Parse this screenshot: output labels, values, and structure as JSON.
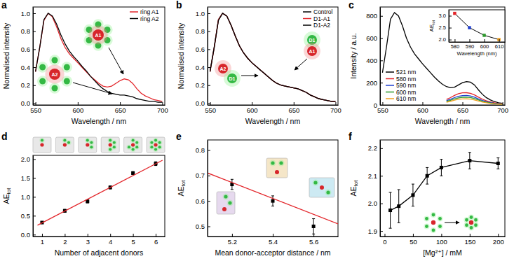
{
  "chart_data": [
    {
      "type": "line",
      "title": "a",
      "xlabel": "Wavelength / nm",
      "ylabel": "Normalised intensity",
      "xlim": [
        547,
        703
      ],
      "xticks": [
        550,
        600,
        650,
        700
      ],
      "ylim": [
        -0.02,
        1.07
      ],
      "yticks": [
        {
          "value": 0,
          "label": "0.0"
        },
        0.2,
        0.4,
        0.6,
        0.8,
        {
          "value": 1,
          "label": "1.0"
        }
      ],
      "legend": "upper right",
      "annotations": [
        "A1",
        "A2"
      ],
      "x": [
        550,
        555,
        560,
        565,
        570,
        575,
        580,
        585,
        590,
        595,
        600,
        605,
        610,
        615,
        620,
        625,
        630,
        635,
        640,
        645,
        650,
        655,
        660,
        665,
        670,
        675,
        680,
        685,
        690,
        695,
        700
      ],
      "series": [
        {
          "name": "ring A1",
          "color": "#e3262b",
          "values": [
            0.35,
            0.62,
            0.92,
            1.0,
            0.96,
            0.85,
            0.72,
            0.62,
            0.55,
            0.5,
            0.45,
            0.4,
            0.35,
            0.3,
            0.26,
            0.22,
            0.19,
            0.18,
            0.19,
            0.22,
            0.25,
            0.27,
            0.26,
            0.22,
            0.16,
            0.11,
            0.08,
            0.06,
            0.04,
            0.03,
            0.02
          ]
        },
        {
          "name": "ring A2",
          "color": "#000000",
          "values": [
            0.35,
            0.62,
            0.93,
            1.0,
            0.97,
            0.88,
            0.76,
            0.66,
            0.58,
            0.52,
            0.47,
            0.41,
            0.36,
            0.3,
            0.25,
            0.2,
            0.16,
            0.13,
            0.11,
            0.1,
            0.09,
            0.09,
            0.08,
            0.07,
            0.05,
            0.04,
            0.03,
            0.02,
            0.02,
            0.01,
            0.01
          ]
        }
      ]
    },
    {
      "type": "line",
      "title": "b",
      "xlabel": "Wavelength / nm",
      "ylabel": "Normalised intensity",
      "xlim": [
        547,
        703
      ],
      "xticks": [
        550,
        600,
        650,
        700
      ],
      "ylim": [
        -0.02,
        1.07
      ],
      "yticks": [
        {
          "value": 0,
          "label": "0.0"
        },
        0.2,
        0.4,
        0.6,
        0.8,
        {
          "value": 1,
          "label": "1.0"
        }
      ],
      "legend": "upper right",
      "annotations": [
        "D1",
        "A1",
        "A2",
        "D1"
      ],
      "x": [
        550,
        555,
        560,
        565,
        570,
        575,
        580,
        585,
        590,
        595,
        600,
        605,
        610,
        615,
        620,
        625,
        630,
        635,
        640,
        645,
        650,
        655,
        660,
        665,
        670,
        675,
        680,
        685,
        690,
        695,
        700
      ],
      "series": [
        {
          "name": "Control",
          "color": "#000000",
          "values": [
            0.36,
            0.63,
            0.93,
            1.0,
            0.97,
            0.87,
            0.75,
            0.64,
            0.56,
            0.5,
            0.45,
            0.41,
            0.37,
            0.33,
            0.29,
            0.25,
            0.22,
            0.2,
            0.19,
            0.18,
            0.17,
            0.16,
            0.14,
            0.12,
            0.09,
            0.07,
            0.05,
            0.04,
            0.03,
            0.02,
            0.02
          ]
        },
        {
          "name": "D1-A1",
          "color": "#e3262b",
          "values": [
            0.35,
            0.62,
            0.93,
            1.0,
            0.97,
            0.87,
            0.75,
            0.64,
            0.56,
            0.5,
            0.45,
            0.41,
            0.37,
            0.33,
            0.29,
            0.25,
            0.22,
            0.2,
            0.19,
            0.18,
            0.17,
            0.16,
            0.14,
            0.12,
            0.09,
            0.07,
            0.05,
            0.04,
            0.03,
            0.02,
            0.02
          ]
        },
        {
          "name": "D1-A2",
          "color": "#000000",
          "values": [
            0.35,
            0.62,
            0.92,
            1.0,
            0.97,
            0.87,
            0.75,
            0.64,
            0.56,
            0.5,
            0.45,
            0.41,
            0.37,
            0.33,
            0.29,
            0.25,
            0.22,
            0.2,
            0.19,
            0.18,
            0.17,
            0.16,
            0.14,
            0.12,
            0.09,
            0.07,
            0.05,
            0.04,
            0.03,
            0.02,
            0.02
          ]
        }
      ]
    },
    {
      "type": "line",
      "title": "c",
      "xlabel": "Wavelength / nm",
      "ylabel": "Intensity / a.u.",
      "xlim": [
        547,
        703
      ],
      "xticks": [
        550,
        600,
        650,
        700
      ],
      "ylim": [
        0,
        880
      ],
      "yticks": [
        0,
        200,
        400,
        600,
        800
      ],
      "legend": "lower left",
      "x": [
        550,
        555,
        560,
        565,
        570,
        575,
        580,
        585,
        590,
        595,
        600,
        605,
        610,
        615,
        620,
        625,
        630,
        635,
        640,
        645,
        650,
        655,
        660,
        665,
        670,
        675,
        680,
        685,
        690,
        695,
        700
      ],
      "series": [
        {
          "name": "521 nm",
          "color": "#000000",
          "values": [
            290,
            520,
            770,
            830,
            800,
            710,
            600,
            520,
            460,
            415,
            370,
            330,
            290,
            250,
            215,
            185,
            165,
            155,
            160,
            180,
            200,
            210,
            205,
            180,
            135,
            95,
            65,
            45,
            30,
            20,
            15
          ]
        },
        {
          "name": "580 nm",
          "color": "#e3262b",
          "x": [
            630,
            635,
            640,
            645,
            650,
            655,
            660,
            665,
            670,
            675,
            680,
            685,
            690,
            695,
            700
          ],
          "values": [
            50,
            66,
            86,
            101,
            109,
            110,
            105,
            90,
            70,
            52,
            37,
            28,
            20,
            14,
            11
          ]
        },
        {
          "name": "590 nm",
          "color": "#1f3fd0",
          "x": [
            630,
            635,
            640,
            645,
            650,
            655,
            660,
            665,
            670,
            675,
            680,
            685,
            690,
            695,
            700
          ],
          "values": [
            38,
            51,
            66,
            78,
            84,
            85,
            81,
            70,
            54,
            40,
            29,
            21,
            15,
            11,
            9
          ]
        },
        {
          "name": "600 nm",
          "color": "#2e9a2e",
          "x": [
            630,
            635,
            640,
            645,
            650,
            655,
            660,
            665,
            670,
            675,
            680,
            685,
            690,
            695,
            700
          ],
          "values": [
            32,
            42,
            55,
            64,
            69,
            70,
            67,
            57,
            45,
            33,
            24,
            18,
            13,
            9,
            7
          ]
        },
        {
          "name": "610 nm",
          "color": "#f0a020",
          "x": [
            630,
            635,
            640,
            645,
            650,
            655,
            660,
            665,
            670,
            675,
            680,
            685,
            690,
            695,
            700
          ],
          "values": [
            25,
            33,
            43,
            51,
            54,
            55,
            52,
            45,
            35,
            26,
            19,
            14,
            10,
            7,
            6
          ]
        }
      ],
      "inset": {
        "type": "scatter",
        "xlabel": "Wavelength (nm)",
        "ylabel": "AE",
        "ylabel_subscript": "tot",
        "xlim": [
          576,
          614
        ],
        "xticks": [
          580,
          590,
          600,
          610
        ],
        "ylim": [
          1.9,
          3.25
        ],
        "yticks": [
          {
            "value": 2,
            "label": "2.0"
          },
          2.5,
          {
            "value": 3,
            "label": "3.0"
          }
        ],
        "series": [
          {
            "x": [
              580,
              590,
              600,
              610
            ],
            "values": [
              3.1,
              2.5,
              2.18,
              2.0
            ],
            "color": "#000000",
            "colors": [
              "#e3262b",
              "#1f3fd0",
              "#2e9a2e",
              "#f0a020"
            ],
            "marker": "square",
            "line_style": "solid"
          }
        ]
      }
    },
    {
      "type": "scatter",
      "title": "d",
      "xlabel": "Number of adjacent donors",
      "ylabel": "AE",
      "ylabel_subscript": "tot",
      "xlim": [
        0.6,
        6.4
      ],
      "xticks": [
        1,
        2,
        3,
        4,
        5,
        6
      ],
      "ylim": [
        -0.05,
        2.1
      ],
      "yticks": [
        {
          "value": 0,
          "label": "0.0"
        },
        0.5,
        {
          "value": 1,
          "label": "1.0"
        },
        1.5,
        {
          "value": 2,
          "label": "2.0"
        }
      ],
      "x": [
        1,
        2,
        3,
        4,
        5,
        6
      ],
      "series": [
        {
          "values": [
            0.32,
            0.63,
            0.88,
            1.25,
            1.63,
            1.88
          ],
          "errors": [
            0.03,
            0.04,
            0.04,
            0.04,
            0.04,
            0.05
          ],
          "color": "#000000",
          "marker": "square"
        },
        {
          "type": "line",
          "x": [
            0.8,
            6.3
          ],
          "values": [
            0.25,
            1.97
          ],
          "color": "#e3262b"
        }
      ]
    },
    {
      "type": "scatter",
      "title": "e",
      "xlabel": "Mean donor-acceptor distance / nm",
      "ylabel": "AE",
      "ylabel_subscript": "tot",
      "xlim": [
        5.08,
        5.72
      ],
      "xticks": [
        5.2,
        5.4,
        5.6
      ],
      "ylim": [
        0.46,
        0.84
      ],
      "yticks": [
        0.5,
        0.6,
        0.7,
        0.8
      ],
      "x": [
        5.2,
        5.4,
        5.6
      ],
      "series": [
        {
          "values": [
            0.665,
            0.6,
            0.5
          ],
          "errors": [
            0.02,
            0.02,
            0.03
          ],
          "color": "#000000",
          "marker": "square"
        },
        {
          "type": "line",
          "x": [
            5.08,
            5.72
          ],
          "values": [
            0.71,
            0.51
          ],
          "color": "#e3262b"
        }
      ]
    },
    {
      "type": "scatter",
      "title": "f",
      "xlabel": "[Mg²⁺] / mM",
      "ylabel": "AE",
      "ylabel_subscript": "tot",
      "xlim": [
        -8,
        212
      ],
      "xticks": [
        0,
        50,
        100,
        150,
        200
      ],
      "ylim": [
        1.88,
        2.23
      ],
      "yticks": [
        1.9,
        {
          "value": 2,
          "label": "2.0"
        },
        2.1,
        2.2
      ],
      "x": [
        10,
        25,
        50,
        75,
        100,
        150,
        200
      ],
      "series": [
        {
          "values": [
            1.975,
            1.99,
            2.03,
            2.1,
            2.13,
            2.155,
            2.145
          ],
          "errors": [
            0.065,
            0.06,
            0.04,
            0.03,
            0.03,
            0.03,
            0.02
          ],
          "color": "#000000",
          "marker": "square",
          "line_style": "solid"
        }
      ]
    }
  ]
}
